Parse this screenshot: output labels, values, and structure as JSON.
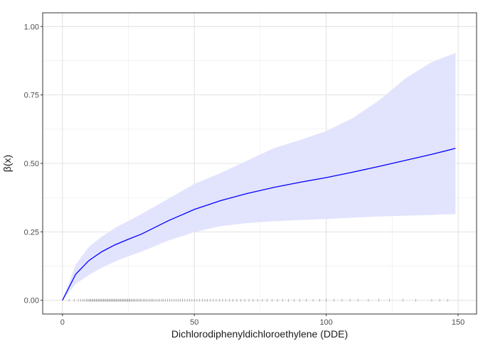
{
  "chart_data": {
    "type": "line",
    "xlabel": "Dichlorodiphenyldichloroethylene (DDE)",
    "ylabel": "β(x)",
    "xlim": [
      -7.5,
      157
    ],
    "ylim": [
      -0.05,
      1.05
    ],
    "x_ticks": [
      0,
      50,
      100,
      150
    ],
    "y_ticks": [
      0.0,
      0.25,
      0.5,
      0.75,
      1.0
    ],
    "x_tick_labels": [
      "0",
      "50",
      "100",
      "150"
    ],
    "y_tick_labels": [
      "0.00",
      "0.25",
      "0.50",
      "0.75",
      "1.00"
    ],
    "grid": true,
    "colors": {
      "line": "#0000ff",
      "band": "#e2e3fd",
      "rug": "#000000"
    },
    "series": [
      {
        "values_x": [
          0,
          5,
          10,
          15,
          20,
          25,
          30,
          40,
          50,
          60,
          70,
          80,
          90,
          100,
          110,
          120,
          130,
          140,
          149
        ],
        "values_y": [
          0.0,
          0.095,
          0.145,
          0.178,
          0.203,
          0.223,
          0.242,
          0.29,
          0.332,
          0.364,
          0.39,
          0.412,
          0.431,
          0.448,
          0.468,
          0.489,
          0.511,
          0.533,
          0.555
        ],
        "lower": [
          0.0,
          0.06,
          0.092,
          0.12,
          0.142,
          0.161,
          0.178,
          0.218,
          0.249,
          0.271,
          0.282,
          0.289,
          0.293,
          0.297,
          0.302,
          0.306,
          0.309,
          0.312,
          0.315
        ],
        "upper": [
          0.0,
          0.13,
          0.195,
          0.233,
          0.265,
          0.29,
          0.315,
          0.37,
          0.425,
          0.465,
          0.51,
          0.555,
          0.585,
          0.618,
          0.665,
          0.73,
          0.81,
          0.87,
          0.903
        ]
      }
    ],
    "rug_x": [
      2.5,
      4.4,
      6.0,
      7.0,
      7.8,
      8.4,
      9.0,
      9.5,
      10.0,
      10.4,
      10.8,
      11.2,
      11.6,
      12.0,
      12.4,
      12.8,
      13.2,
      13.6,
      14.0,
      14.4,
      14.8,
      15.2,
      15.6,
      16.0,
      16.4,
      16.8,
      17.2,
      17.6,
      18.0,
      18.4,
      18.8,
      19.2,
      19.6,
      20.0,
      20.4,
      20.8,
      21.2,
      21.6,
      22.0,
      22.4,
      22.8,
      23.2,
      23.6,
      24.0,
      24.4,
      24.8,
      25.2,
      25.6,
      26.0,
      26.5,
      27.0,
      27.5,
      28.0,
      28.5,
      29.0,
      29.5,
      30.0,
      30.6,
      31.2,
      31.8,
      32.4,
      33.0,
      33.6,
      34.2,
      34.8,
      35.5,
      36.2,
      36.9,
      37.6,
      38.3,
      39.0,
      39.8,
      40.6,
      41.4,
      42.2,
      43.0,
      43.8,
      44.6,
      45.5,
      46.4,
      47.3,
      48.2,
      49.1,
      50.0,
      51.0,
      52.0,
      53.0,
      54.0,
      55.0,
      56.1,
      57.2,
      58.3,
      59.5,
      60.7,
      62.0,
      63.3,
      64.7,
      66.1,
      67.6,
      69.1,
      70.7,
      72.3,
      74.0,
      75.8,
      77.6,
      79.5,
      81.5,
      83.5,
      85.6,
      87.8,
      90.0,
      92.5,
      95.0,
      97.5,
      100.0,
      103.0,
      106.0,
      109.0,
      112.0,
      116.0,
      120.0,
      124.0,
      129.0,
      134.0,
      140.0,
      143.0,
      146.0
    ]
  }
}
